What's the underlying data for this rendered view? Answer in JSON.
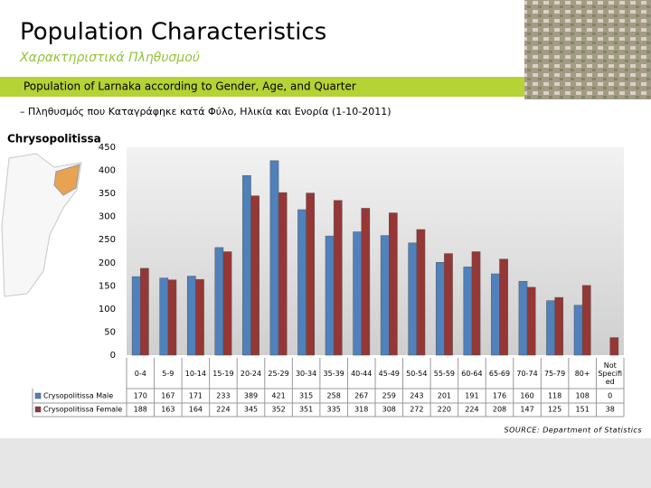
{
  "page": {
    "title": "Population Characteristics",
    "subtitle": "Χαρακτηριστικά Πληθυσμού",
    "banner": "Population of Larnaka according to Gender, Age, and Quarter",
    "caption": "– Πληθυσμός που Καταγράφηκε κατά Φύλο, Ηλικία και Ενορία (1-10-2011)",
    "region_label": "Chrysopolitissa",
    "source": "SOURCE: Department of Statistics"
  },
  "chart_data": {
    "type": "bar",
    "categories": [
      "0-4",
      "5-9",
      "10-14",
      "15-19",
      "20-24",
      "25-29",
      "30-34",
      "35-39",
      "40-44",
      "45-49",
      "50-54",
      "55-59",
      "60-64",
      "65-69",
      "70-74",
      "75-79",
      "80+",
      "Not Specified"
    ],
    "series": [
      {
        "name": "Crysopolitissa Male",
        "color": "#4f81bd",
        "values": [
          170,
          167,
          171,
          233,
          389,
          421,
          315,
          258,
          267,
          259,
          243,
          201,
          191,
          176,
          160,
          118,
          108,
          0
        ]
      },
      {
        "name": "Crysopolitissa Female",
        "color": "#953735",
        "values": [
          188,
          163,
          164,
          224,
          345,
          352,
          351,
          335,
          318,
          308,
          272,
          220,
          224,
          208,
          147,
          125,
          151,
          38
        ]
      }
    ],
    "ylim": [
      0,
      450
    ],
    "yticks": [
      0,
      50,
      100,
      150,
      200,
      250,
      300,
      350,
      400,
      450
    ],
    "grid": false
  }
}
